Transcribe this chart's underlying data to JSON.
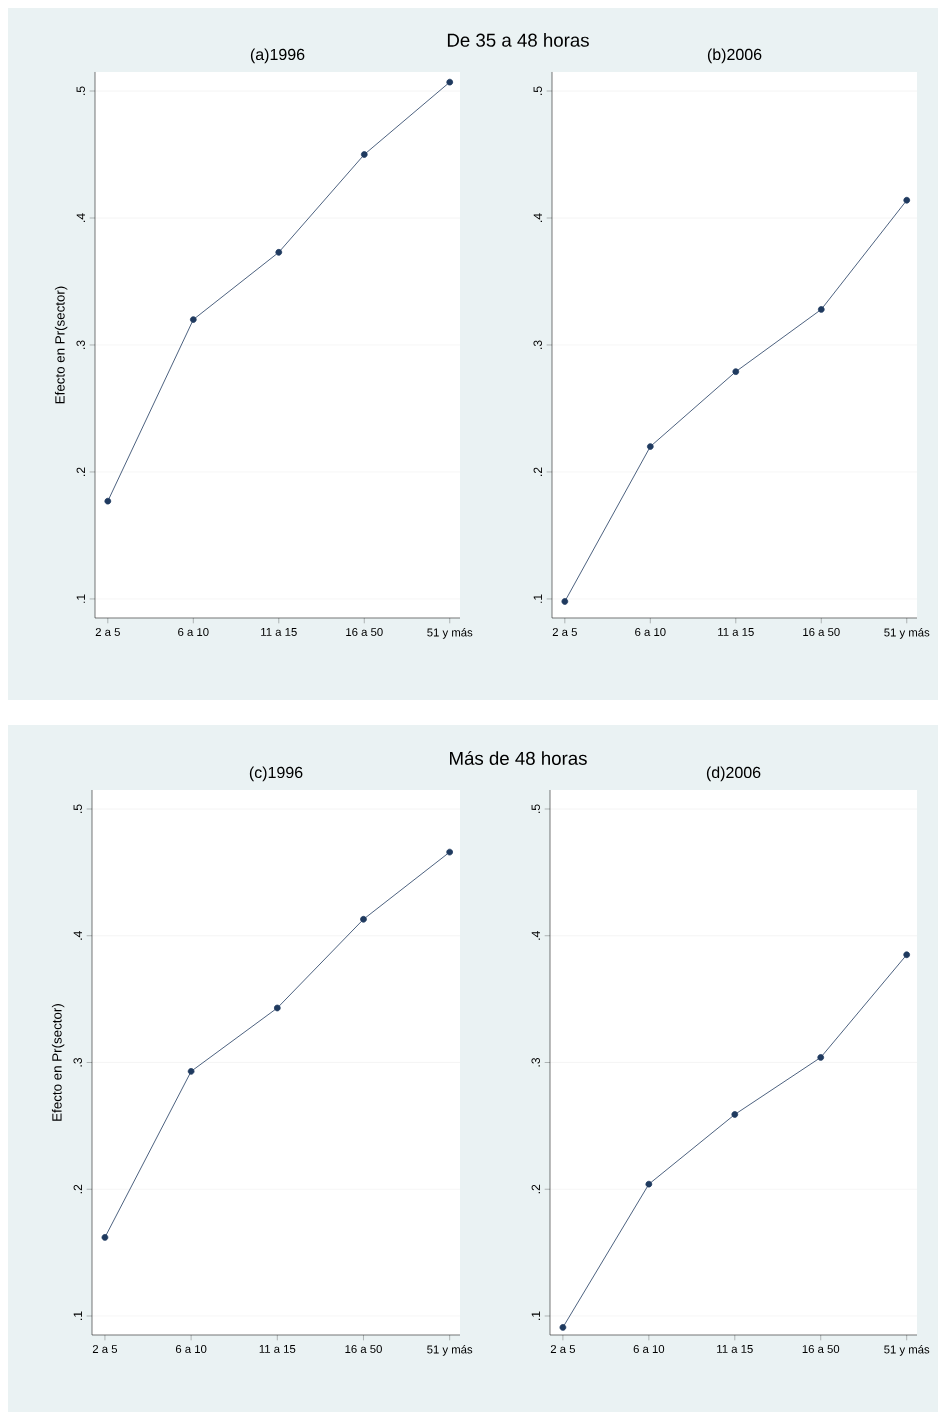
{
  "chart_data": [
    {
      "type": "line",
      "title": "(a)1996",
      "ylabel": "Efecto en Pr(sector)",
      "annotations": [
        "De 35 a 48 horas"
      ],
      "categories": [
        "2 a 5",
        "6 a 10",
        "11 a 15",
        "16 a 50",
        "51 y más"
      ],
      "values": [
        0.177,
        0.32,
        0.373,
        0.45,
        0.507
      ],
      "color": "#1f3a5f",
      "ylim": [
        0.085,
        0.515
      ],
      "yticks": [
        {
          "value": 0.1,
          "label": ".1"
        },
        {
          "value": 0.2,
          "label": ".2"
        },
        {
          "value": 0.3,
          "label": ".3"
        },
        {
          "value": 0.4,
          "label": ".4"
        },
        {
          "value": 0.5,
          "label": ".5"
        }
      ],
      "grid": "y",
      "marker": "circle"
    },
    {
      "type": "line",
      "title": "(b)2006",
      "categories": [
        "2 a 5",
        "6 a 10",
        "11 a 15",
        "16 a 50",
        "51 y más"
      ],
      "values": [
        0.098,
        0.22,
        0.279,
        0.328,
        0.414
      ],
      "color": "#1f3a5f",
      "ylim": [
        0.085,
        0.515
      ],
      "yticks": [
        {
          "value": 0.1,
          "label": ".1"
        },
        {
          "value": 0.2,
          "label": ".2"
        },
        {
          "value": 0.3,
          "label": ".3"
        },
        {
          "value": 0.4,
          "label": ".4"
        },
        {
          "value": 0.5,
          "label": ".5"
        }
      ],
      "grid": "y",
      "marker": "circle"
    },
    {
      "type": "line",
      "title": "(c)1996",
      "ylabel": "Efecto en Pr(sector)",
      "annotations": [
        "Más de 48 horas"
      ],
      "categories": [
        "2 a 5",
        "6 a 10",
        "11 a 15",
        "16 a 50",
        "51 y más"
      ],
      "values": [
        0.162,
        0.293,
        0.343,
        0.413,
        0.466
      ],
      "color": "#1f3a5f",
      "ylim": [
        0.085,
        0.515
      ],
      "yticks": [
        {
          "value": 0.1,
          "label": ".1"
        },
        {
          "value": 0.2,
          "label": ".2"
        },
        {
          "value": 0.3,
          "label": ".3"
        },
        {
          "value": 0.4,
          "label": ".4"
        },
        {
          "value": 0.5,
          "label": ".5"
        }
      ],
      "grid": "y",
      "marker": "circle"
    },
    {
      "type": "line",
      "title": "(d)2006",
      "categories": [
        "2 a 5",
        "6 a 10",
        "11 a 15",
        "16 a 50",
        "51 y más"
      ],
      "values": [
        0.091,
        0.204,
        0.259,
        0.304,
        0.385
      ],
      "color": "#1f3a5f",
      "ylim": [
        0.085,
        0.515
      ],
      "yticks": [
        {
          "value": 0.1,
          "label": ".1"
        },
        {
          "value": 0.2,
          "label": ".2"
        },
        {
          "value": 0.3,
          "label": ".3"
        },
        {
          "value": 0.4,
          "label": ".4"
        },
        {
          "value": 0.5,
          "label": ".5"
        }
      ],
      "grid": "y",
      "marker": "circle"
    }
  ]
}
